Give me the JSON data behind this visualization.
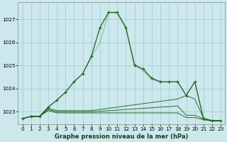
{
  "xlabel": "Graphe pression niveau de la mer (hPa)",
  "x": [
    0,
    1,
    2,
    3,
    4,
    5,
    6,
    7,
    8,
    9,
    10,
    11,
    12,
    13,
    14,
    15,
    16,
    17,
    18,
    19,
    20,
    21,
    22,
    23
  ],
  "line_main": [
    1022.7,
    1022.8,
    1022.8,
    1023.2,
    1023.5,
    1023.85,
    1024.3,
    1024.65,
    1025.4,
    1026.65,
    1027.3,
    1027.3,
    1026.65,
    1025.0,
    1024.85,
    1024.45,
    1024.3,
    1024.3,
    1024.3,
    1023.7,
    1024.3,
    1022.7,
    1022.6,
    1022.6
  ],
  "line_dot": [
    1022.7,
    1022.8,
    1022.8,
    1023.2,
    1023.5,
    1023.85,
    1024.3,
    1024.65,
    1025.35,
    1026.0,
    1027.3,
    1027.25,
    1026.6,
    1025.1,
    1024.75,
    1024.4,
    1024.28,
    1024.28,
    1024.3,
    1023.7,
    1024.3,
    1022.7,
    1022.6,
    1022.6
  ],
  "line_flat1": [
    1022.7,
    1022.8,
    1022.8,
    1023.15,
    1023.05,
    1023.05,
    1023.05,
    1023.05,
    1023.05,
    1023.1,
    1023.15,
    1023.2,
    1023.25,
    1023.3,
    1023.35,
    1023.4,
    1023.45,
    1023.5,
    1023.55,
    1023.7,
    1023.55,
    1022.72,
    1022.62,
    1022.62
  ],
  "line_flat2": [
    1022.7,
    1022.8,
    1022.8,
    1023.1,
    1023.0,
    1023.0,
    1023.0,
    1023.0,
    1023.0,
    1023.02,
    1023.05,
    1023.07,
    1023.1,
    1023.12,
    1023.15,
    1023.17,
    1023.2,
    1023.22,
    1023.25,
    1022.85,
    1022.85,
    1022.7,
    1022.62,
    1022.62
  ],
  "line_flat3": [
    1022.7,
    1022.8,
    1022.8,
    1023.05,
    1022.95,
    1022.95,
    1022.95,
    1022.95,
    1022.95,
    1022.95,
    1022.95,
    1022.95,
    1022.95,
    1022.95,
    1022.95,
    1022.95,
    1022.95,
    1022.95,
    1022.95,
    1022.75,
    1022.75,
    1022.65,
    1022.6,
    1022.6
  ],
  "bg_color": "#cce8ec",
  "grid_color": "#99cccc",
  "line_color": "#1a6622",
  "ylim_min": 1022.45,
  "ylim_max": 1027.75,
  "yticks": [
    1023,
    1024,
    1025,
    1026,
    1027
  ],
  "xticks": [
    0,
    1,
    2,
    3,
    4,
    5,
    6,
    7,
    8,
    9,
    10,
    11,
    12,
    13,
    14,
    15,
    16,
    17,
    18,
    19,
    20,
    21,
    22,
    23
  ],
  "label_fontsize": 6.0,
  "tick_fontsize": 5.2
}
